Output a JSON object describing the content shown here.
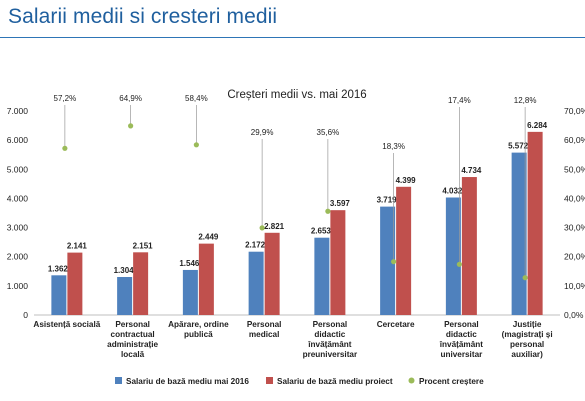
{
  "page": {
    "title": "Salarii medii si cresteri medii"
  },
  "colors": {
    "title": "#1f5f9e",
    "series_blue": "#4f81bd",
    "series_red": "#c0504d",
    "growth_dot": "#9bbb59"
  },
  "chart_data": {
    "type": "bar",
    "title": "Creșteri medii vs. mai 2016",
    "categories": [
      [
        "Asistență socială"
      ],
      [
        "Personal",
        "contractual",
        "administrație",
        "locală"
      ],
      [
        "Apărare, ordine",
        "publică"
      ],
      [
        "Personal",
        "medical"
      ],
      [
        "Personal",
        "didactic",
        "învățământ",
        "preuniversitar"
      ],
      [
        "Cercetare"
      ],
      [
        "Personal",
        "didactic",
        "învățământ",
        "universitar"
      ],
      [
        "Justiție",
        "(magistrați și",
        "personal",
        "auxiliar)"
      ]
    ],
    "series": [
      {
        "name": "Salariu de bază mediu mai 2016",
        "values": [
          1362,
          1304,
          1546,
          2172,
          2653,
          3719,
          4032,
          5572
        ],
        "labels": [
          "1.362",
          "1.304",
          "1.546",
          "2.172",
          "2.653",
          "3.719",
          "4.032",
          "5.572"
        ]
      },
      {
        "name": "Salariu de bază mediu proiect",
        "values": [
          2141,
          2151,
          2449,
          2821,
          3597,
          4399,
          4734,
          6284
        ],
        "labels": [
          "2.141",
          "2.151",
          "2.449",
          "2.821",
          "3.597",
          "4.399",
          "4.734",
          "6.284"
        ]
      },
      {
        "name": "Procent creștere",
        "values": [
          57.2,
          64.9,
          58.4,
          29.9,
          35.6,
          18.3,
          17.4,
          12.8
        ],
        "labels": [
          "57,2%",
          "64,9%",
          "58,4%",
          "29,9%",
          "35,6%",
          "18,3%",
          "17,4%",
          "12,8%"
        ]
      }
    ],
    "ylim": [
      0,
      7000
    ],
    "y2lim": [
      0,
      70
    ],
    "yticks": [
      "0",
      "1.000",
      "2.000",
      "3.000",
      "4.000",
      "5.000",
      "6.000",
      "7.000"
    ],
    "y2ticks": [
      "0,0%",
      "10,0%",
      "20,0%",
      "30,0%",
      "40,0%",
      "50,0%",
      "60,0%",
      "70,0%"
    ],
    "legend_position": "bottom",
    "grid": false
  }
}
